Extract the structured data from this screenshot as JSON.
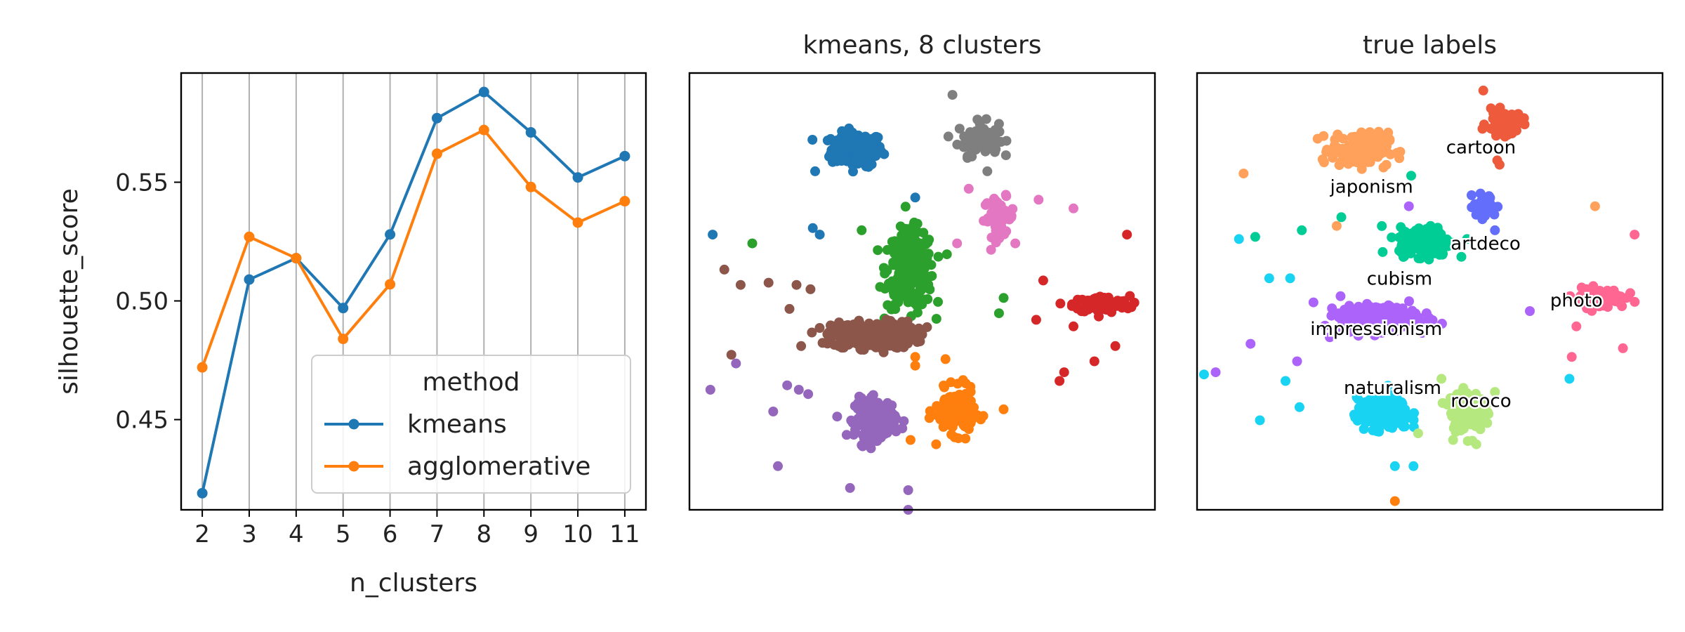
{
  "chart_data": [
    {
      "type": "line",
      "xlabel": "n_clusters",
      "ylabel": "silhouette_score",
      "x": [
        2,
        3,
        4,
        5,
        6,
        7,
        8,
        9,
        10,
        11
      ],
      "xticks": [
        "2",
        "3",
        "4",
        "5",
        "6",
        "7",
        "8",
        "9",
        "10",
        "11"
      ],
      "xlim": [
        1.55,
        11.45
      ],
      "ylim": [
        0.412,
        0.596
      ],
      "yticks": [
        0.45,
        0.5,
        0.55
      ],
      "ytick_labels": [
        "0.45",
        "0.50",
        "0.55"
      ],
      "grid": "vertical",
      "legend": {
        "title": "method",
        "placement": "lower-right"
      },
      "series": [
        {
          "name": "kmeans",
          "color": "#1f77b4",
          "values": [
            0.419,
            0.509,
            0.518,
            0.497,
            0.528,
            0.577,
            0.588,
            0.571,
            0.552,
            0.561
          ]
        },
        {
          "name": "agglomerative",
          "color": "#ff7f0e",
          "values": [
            0.472,
            0.527,
            0.518,
            0.484,
            0.507,
            0.562,
            0.572,
            0.548,
            0.533,
            0.542
          ]
        }
      ]
    },
    {
      "type": "scatter",
      "title": "kmeans, 8 clusters",
      "axes": "off",
      "xlim": [
        -10,
        10
      ],
      "ylim": [
        -10,
        10
      ],
      "clusters": [
        {
          "color": "#1f77b4",
          "center": [
            -2.8,
            6.5
          ],
          "spread": [
            1.0,
            0.7
          ],
          "count": 180,
          "outliers": [
            [
              -9.0,
              2.6
            ],
            [
              -4.6,
              5.5
            ],
            [
              -4.4,
              2.6
            ],
            [
              -4.7,
              2.9
            ],
            [
              -0.3,
              4.3
            ]
          ]
        },
        {
          "color": "#7f7f7f",
          "center": [
            2.4,
            7.0
          ],
          "spread": [
            0.8,
            0.7
          ],
          "count": 70,
          "outliers": [
            [
              1.3,
              9.0
            ],
            [
              2.8,
              5.5
            ]
          ]
        },
        {
          "color": "#e377c2",
          "center": [
            3.3,
            3.4
          ],
          "spread": [
            0.6,
            0.8
          ],
          "count": 55,
          "outliers": [
            [
              1.5,
              2.2
            ],
            [
              4.0,
              2.2
            ],
            [
              5.0,
              4.2
            ],
            [
              6.5,
              3.8
            ],
            [
              2.0,
              4.7
            ]
          ]
        },
        {
          "color": "#2ca02c",
          "center": [
            -0.5,
            1.0
          ],
          "spread": [
            0.9,
            1.6
          ],
          "count": 260,
          "outliers": [
            [
              -7.3,
              2.2
            ],
            [
              -2.6,
              2.8
            ],
            [
              3.5,
              -0.3
            ],
            [
              3.3,
              -1.0
            ],
            [
              -1.5,
              1.9
            ]
          ]
        },
        {
          "color": "#d62728",
          "center": [
            7.7,
            -0.6
          ],
          "spread": [
            1.1,
            0.35
          ],
          "count": 120,
          "outliers": [
            [
              8.8,
              2.6
            ],
            [
              5.2,
              0.5
            ],
            [
              6.5,
              -1.6
            ],
            [
              7.4,
              -3.2
            ],
            [
              8.3,
              -2.5
            ],
            [
              6.1,
              -3.7
            ],
            [
              5.9,
              -4.1
            ],
            [
              4.9,
              -1.3
            ]
          ]
        },
        {
          "color": "#8c564b",
          "center": [
            -2.1,
            -2.0
          ],
          "spread": [
            1.6,
            0.55
          ],
          "count": 300,
          "outliers": [
            [
              -8.5,
              1.0
            ],
            [
              -7.8,
              0.3
            ],
            [
              -6.6,
              0.4
            ],
            [
              -5.4,
              0.3
            ],
            [
              -4.8,
              0.1
            ],
            [
              -5.7,
              -0.8
            ],
            [
              -8.2,
              -2.9
            ],
            [
              -5.2,
              -2.5
            ]
          ]
        },
        {
          "color": "#9467bd",
          "center": [
            -2.0,
            -5.8
          ],
          "spread": [
            0.8,
            0.8
          ],
          "count": 200,
          "outliers": [
            [
              -9.1,
              -4.5
            ],
            [
              -6.4,
              -5.5
            ],
            [
              -6.2,
              -8.0
            ],
            [
              -5.8,
              -4.3
            ],
            [
              -5.3,
              -4.5
            ],
            [
              -4.9,
              -4.7
            ],
            [
              -3.1,
              -9.0
            ],
            [
              -0.6,
              -9.1
            ],
            [
              -0.6,
              -10.0
            ],
            [
              -8.0,
              -3.3
            ]
          ]
        },
        {
          "color": "#ff7f0e",
          "center": [
            1.4,
            -5.5
          ],
          "spread": [
            0.75,
            0.9
          ],
          "count": 160,
          "outliers": [
            [
              -0.3,
              -3.4
            ],
            [
              3.5,
              -5.4
            ],
            [
              0.6,
              -7.0
            ],
            [
              -0.5,
              -6.8
            ],
            [
              -0.3,
              -3.0
            ],
            [
              1.0,
              -3.1
            ]
          ]
        }
      ]
    },
    {
      "type": "scatter",
      "title": "true labels",
      "axes": "off",
      "xlim": [
        -10,
        10
      ],
      "ylim": [
        -10,
        10
      ],
      "clusters": [
        {
          "label": "cartoon",
          "color": "#ee5a3c",
          "label_pos": [
            2.2,
            6.6
          ],
          "center": [
            3.2,
            7.7
          ],
          "spread": [
            0.7,
            0.5
          ],
          "count": 55,
          "outliers": [
            [
              2.3,
              9.2
            ],
            [
              2.9,
              6.0
            ],
            [
              3.0,
              5.8
            ]
          ]
        },
        {
          "label": "japonism",
          "color": "#ffa15a",
          "label_pos": [
            -2.5,
            4.8
          ],
          "center": [
            -3.0,
            6.5
          ],
          "spread": [
            1.1,
            0.7
          ],
          "count": 180,
          "outliers": [
            [
              -8.0,
              5.4
            ],
            [
              -4.0,
              3.0
            ],
            [
              7.1,
              3.9
            ]
          ]
        },
        {
          "label": "artdeco",
          "color": "#636efa",
          "label_pos": [
            2.4,
            2.2
          ],
          "center": [
            2.4,
            3.9
          ],
          "spread": [
            0.45,
            0.5
          ],
          "count": 45,
          "outliers": [
            [
              -1.8,
              4.7
            ],
            [
              2.8,
              2.8
            ]
          ]
        },
        {
          "label": "cubism",
          "color": "#00cc96",
          "label_pos": [
            -1.3,
            0.6
          ],
          "center": [
            -0.2,
            2.3
          ],
          "spread": [
            1.0,
            0.6
          ],
          "count": 200,
          "outliers": [
            [
              -7.5,
              2.5
            ],
            [
              -5.5,
              2.8
            ],
            [
              -3.8,
              3.4
            ],
            [
              1.6,
              2.4
            ]
          ]
        },
        {
          "label": "photo",
          "color": "#ff6692",
          "label_pos": [
            6.3,
            -0.4
          ],
          "center": [
            7.3,
            -0.3
          ],
          "spread": [
            1.0,
            0.4
          ],
          "count": 120,
          "outliers": [
            [
              8.8,
              2.6
            ],
            [
              6.3,
              -1.6
            ],
            [
              8.3,
              -2.6
            ],
            [
              6.1,
              -3.0
            ]
          ]
        },
        {
          "label": "impressionism",
          "color": "#ab63fa",
          "label_pos": [
            -2.3,
            -1.7
          ],
          "center": [
            -2.2,
            -1.2
          ],
          "spread": [
            1.5,
            0.5
          ],
          "count": 260,
          "outliers": [
            [
              -9.2,
              -3.7
            ],
            [
              -7.7,
              -2.4
            ],
            [
              -5.7,
              -3.2
            ],
            [
              -4.3,
              -2.1
            ],
            [
              4.3,
              -0.9
            ],
            [
              -5.0,
              -0.5
            ]
          ]
        },
        {
          "label": "naturalism",
          "color": "#19d3f3",
          "label_pos": [
            -1.6,
            -4.4
          ],
          "center": [
            -2.0,
            -5.6
          ],
          "spread": [
            1.0,
            0.65
          ],
          "count": 240,
          "outliers": [
            [
              -9.7,
              -3.8
            ],
            [
              -8.2,
              2.4
            ],
            [
              -6.9,
              0.6
            ],
            [
              -6.0,
              0.6
            ],
            [
              -5.6,
              -5.3
            ],
            [
              -6.2,
              -4.1
            ],
            [
              -7.3,
              -5.9
            ],
            [
              -0.7,
              -8.0
            ],
            [
              -1.5,
              -8.0
            ],
            [
              6.0,
              -4.0
            ]
          ]
        },
        {
          "label": "rococo",
          "color": "#b6e880",
          "label_pos": [
            2.2,
            -5.0
          ],
          "center": [
            1.6,
            -5.5
          ],
          "spread": [
            0.65,
            0.8
          ],
          "count": 150,
          "outliers": [
            [
              0.5,
              -4.0
            ],
            [
              1.0,
              -6.8
            ],
            [
              -0.5,
              -6.5
            ],
            [
              2.8,
              -4.6
            ],
            [
              2.0,
              -7.0
            ]
          ]
        }
      ],
      "extra_points": [
        {
          "color": "#ff7f0e",
          "xy": [
            -1.5,
            -9.6
          ]
        },
        {
          "color": "#00cc96",
          "xy": [
            -0.8,
            5.3
          ]
        },
        {
          "color": "#ab63fa",
          "xy": [
            -0.9,
            3.9
          ]
        }
      ]
    }
  ]
}
